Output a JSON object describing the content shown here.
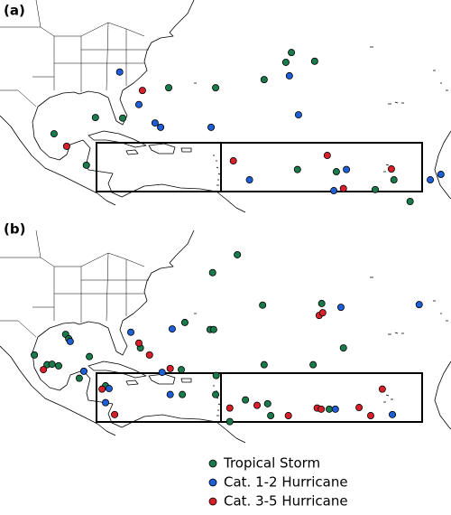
{
  "legend": [
    {
      "name": "Tropical Storm",
      "color": "#1a7a4c"
    },
    {
      "name": "Cat. 1-2 Hurricane",
      "color": "#1f5fd6"
    },
    {
      "name": "Cat. 3-5 Hurricane",
      "color": "#d9202a"
    }
  ],
  "chart_data": [
    {
      "type": "scatter",
      "title": "(a)",
      "xlim": [
        -103.2,
        -13.9
      ],
      "ylim": [
        8.3,
        47.5
      ],
      "series": [
        {
          "x": [
            -45.5,
            -46.6,
            -40.9,
            -50.9,
            -60.5,
            -69.8,
            -92.5,
            -84.3,
            -78.9,
            -86.1,
            -44.3,
            -36.6,
            -28.9,
            -25.2,
            -22.0
          ],
          "y": [
            37.8,
            36.0,
            36.2,
            32.8,
            31.3,
            31.3,
            22.8,
            25.8,
            25.7,
            17.0,
            16.2,
            15.8,
            12.5,
            14.3,
            10.3
          ]
        },
        {
          "x": [
            -45.9,
            -75.7,
            -79.5,
            -72.5,
            -71.4,
            -61.4,
            -44.1,
            -53.8,
            -34.6,
            -37.1,
            -18.0,
            -15.9
          ],
          "y": [
            33.5,
            28.2,
            34.2,
            24.8,
            24.0,
            24.0,
            26.3,
            14.3,
            16.2,
            12.3,
            14.3,
            15.3
          ]
        },
        {
          "x": [
            -75.0,
            -90.0,
            -57.0,
            -38.4,
            -35.2,
            -25.7
          ],
          "y": [
            30.8,
            20.5,
            17.8,
            18.8,
            12.7,
            16.3
          ]
        }
      ]
    },
    {
      "type": "scatter",
      "title": "(b)",
      "xlim": [
        -103.2,
        -13.9
      ],
      "ylim": [
        8.3,
        47.5
      ],
      "series": [
        {
          "x": [
            -56.2,
            -61.1,
            -51.2,
            -39.5,
            -66.6,
            -61.6,
            -60.9,
            -90.2,
            -89.6,
            -75.4,
            -35.2,
            -96.4,
            -93.9,
            -92.9,
            -91.6,
            -85.5,
            -50.9,
            -41.2,
            -67.3,
            -60.4,
            -87.5,
            -82.3,
            -67.1,
            -60.5,
            -54.6,
            -50.2,
            -49.6,
            -38.0,
            -57.7
          ],
          "y": [
            43.0,
            39.7,
            33.7,
            34.0,
            30.5,
            29.2,
            29.2,
            28.3,
            27.5,
            25.8,
            25.8,
            24.5,
            22.7,
            22.8,
            22.5,
            24.2,
            22.7,
            22.7,
            21.8,
            20.7,
            20.2,
            18.8,
            17.2,
            17.2,
            16.2,
            15.5,
            13.3,
            14.5,
            12.2
          ]
        },
        {
          "x": [
            -20.2,
            -35.7,
            -77.3,
            -69.1,
            -89.3,
            -86.6,
            -71.1,
            -81.6,
            -82.3,
            -69.5,
            -36.8,
            -25.5
          ],
          "y": [
            33.8,
            33.3,
            28.7,
            29.3,
            27.0,
            21.5,
            21.3,
            18.3,
            15.7,
            17.2,
            14.5,
            13.5
          ]
        },
        {
          "x": [
            -40.0,
            -39.3,
            -75.7,
            -73.6,
            -94.6,
            -69.5,
            -83.0,
            -80.5,
            -57.7,
            -52.3,
            -46.1,
            -40.4,
            -39.6,
            -32.1,
            -29.8,
            -27.5
          ],
          "y": [
            31.8,
            32.3,
            26.7,
            24.5,
            21.8,
            22.0,
            18.2,
            13.5,
            14.7,
            15.2,
            13.3,
            14.7,
            14.5,
            14.8,
            13.3,
            18.2
          ]
        }
      ]
    }
  ]
}
